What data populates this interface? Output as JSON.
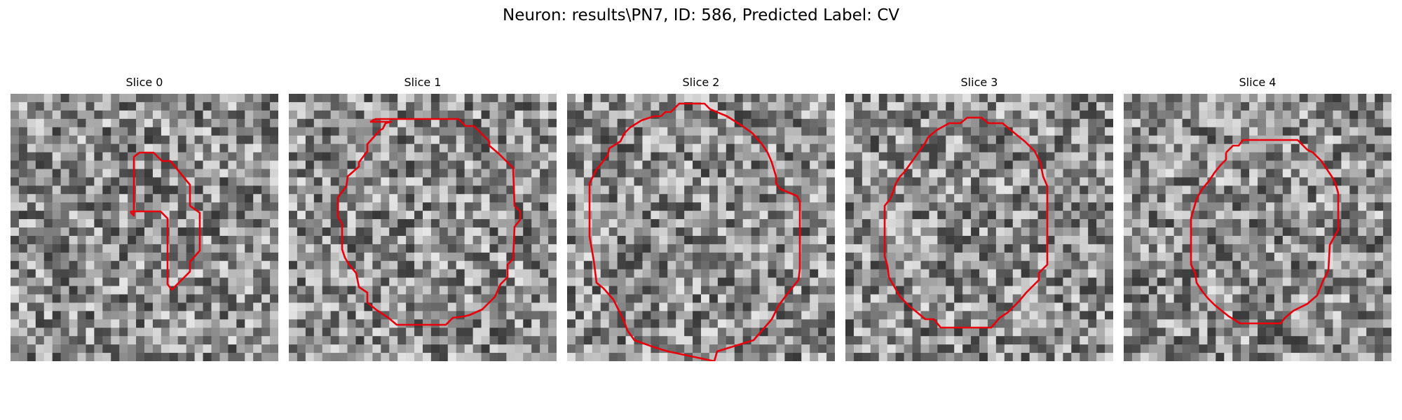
{
  "figure": {
    "title": "Neuron: results\\PN7, ID: 586, Predicted Label: CV"
  },
  "colors": {
    "contour": "#e8000b",
    "background": "#ffffff"
  },
  "panels": [
    {
      "title": "Slice 0"
    },
    {
      "title": "Slice 1"
    },
    {
      "title": "Slice 2"
    },
    {
      "title": "Slice 3"
    },
    {
      "title": "Slice 4"
    }
  ]
}
